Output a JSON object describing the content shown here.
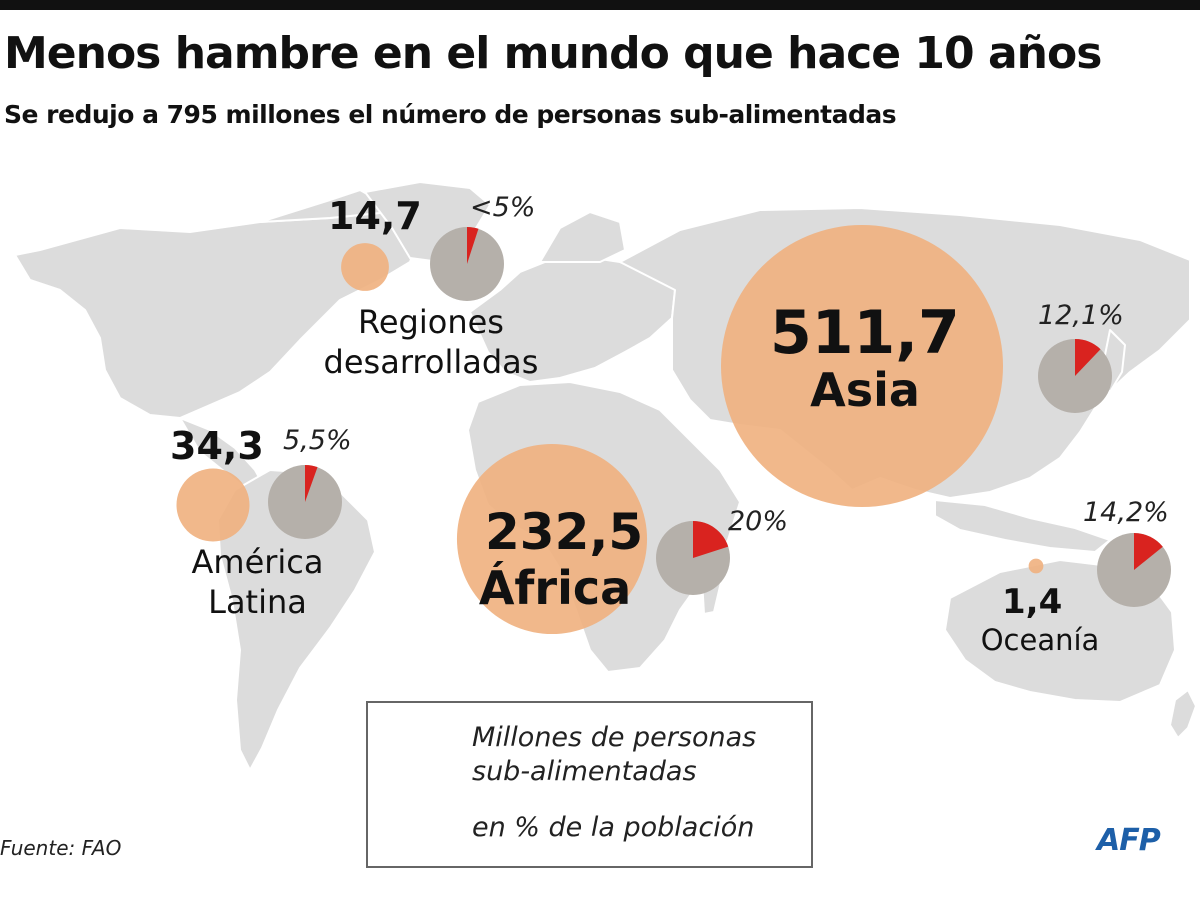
{
  "title": "Menos hambre en el mundo que hace 10 años",
  "subtitle": "Se redujo a 795 millones el número de personas sub-alimentadas",
  "colors": {
    "bubble": "#f0b07e",
    "pie_base": "#b5b0aa",
    "pie_slice": "#d9231f",
    "land": "#dcdcdc"
  },
  "regions": [
    {
      "id": "desarrolladas",
      "name_lines": [
        "Regiones",
        "desarrolladas"
      ],
      "millions": 14.7,
      "millions_label": "14,7",
      "pct": 5,
      "pct_label": "<5%"
    },
    {
      "id": "asia",
      "name_lines": [
        "Asia"
      ],
      "millions": 511.7,
      "millions_label": "511,7",
      "pct": 12.1,
      "pct_label": "12,1%"
    },
    {
      "id": "latina",
      "name_lines": [
        "América",
        "Latina"
      ],
      "millions": 34.3,
      "millions_label": "34,3",
      "pct": 5.5,
      "pct_label": "5,5%"
    },
    {
      "id": "africa",
      "name_lines": [
        "África"
      ],
      "millions": 232.5,
      "millions_label": "232,5",
      "pct": 20,
      "pct_label": "20%"
    },
    {
      "id": "oceania",
      "name_lines": [
        "Oceanía"
      ],
      "millions": 1.4,
      "millions_label": "1,4",
      "pct": 14.2,
      "pct_label": "14,2%"
    }
  ],
  "legend": {
    "bubble_label_lines": [
      "Millones de personas",
      "sub-alimentadas"
    ],
    "pie_label": "en % de la población"
  },
  "source": "Fuente: FAO",
  "agency": "AFP"
}
